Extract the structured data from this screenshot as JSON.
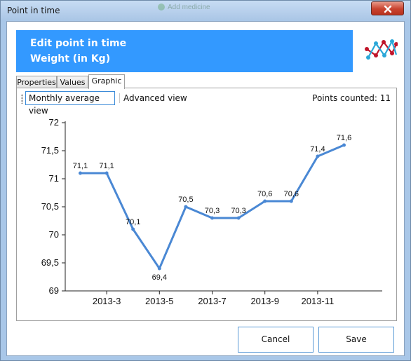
{
  "window": {
    "title": "Point in time",
    "background_hint": "Add medicine"
  },
  "header": {
    "line1": "Edit point in time",
    "line2": "Weight (in Kg)",
    "color": "#3399ff"
  },
  "tabs": [
    {
      "label": "Properties",
      "active": false
    },
    {
      "label": "Values",
      "active": false
    },
    {
      "label": "Graphic",
      "active": true
    }
  ],
  "toolbar": {
    "monthly_view": "Monthly average view",
    "advanced_view": "Advanced view",
    "points_counted": "Points counted: 11"
  },
  "chart_data": {
    "type": "line",
    "x": [
      "2013-2",
      "2013-3",
      "2013-4",
      "2013-5",
      "2013-6",
      "2013-7",
      "2013-8",
      "2013-9",
      "2013-10",
      "2013-11",
      "2013-12"
    ],
    "values": [
      71.1,
      71.1,
      70.1,
      69.4,
      70.5,
      70.3,
      70.3,
      70.6,
      70.6,
      71.4,
      71.6
    ],
    "data_labels": [
      "71,1",
      "71,1",
      "70,1",
      "69,4",
      "70,5",
      "70,3",
      "70,3",
      "70,6",
      "70,6",
      "71,4",
      "71,6"
    ],
    "xticks": [
      "2013-3",
      "2013-5",
      "2013-7",
      "2013-9",
      "2013-11"
    ],
    "yticks": [
      69,
      69.5,
      70,
      70.5,
      71,
      71.5,
      72
    ],
    "ytick_labels": [
      "69",
      "69,5",
      "70",
      "70,5",
      "71",
      "71,5",
      "72"
    ],
    "ylim": [
      69,
      72
    ],
    "grid": false,
    "line_color": "#4a88d4"
  },
  "buttons": {
    "cancel": "Cancel",
    "save": "Save"
  }
}
